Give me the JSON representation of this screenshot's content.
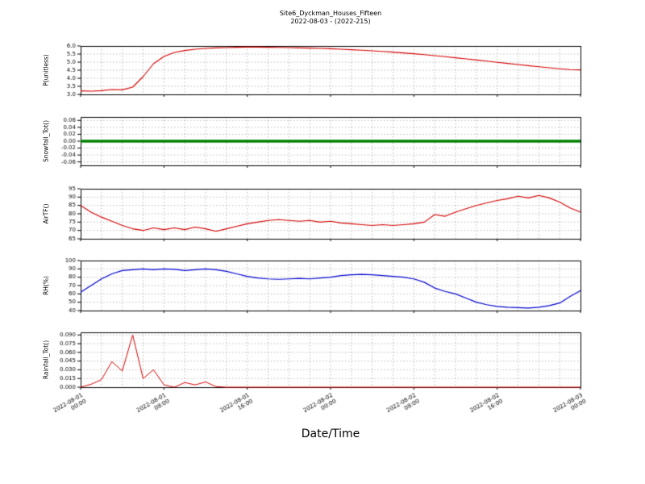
{
  "title": {
    "line1": "Site6_Dyckman_Houses_Fifteen",
    "line2": "2022-08-03 - (2022-215)"
  },
  "xlabel": "Date/Time",
  "chart_data": {
    "type": "line",
    "x_axis": {
      "label": "Date/Time",
      "start": "2022-08-01 00:00",
      "end": "2022-08-03 00:00",
      "total_hours": 48,
      "tick_hours": [
        0,
        8,
        16,
        24,
        32,
        40,
        48
      ],
      "tick_labels": [
        [
          "2022-08-01",
          "00:00"
        ],
        [
          "2022-08-01",
          "08:00"
        ],
        [
          "2022-08-01",
          "16:00"
        ],
        [
          "2022-08-02",
          "00:00"
        ],
        [
          "2022-08-02",
          "08:00"
        ],
        [
          "2022-08-02",
          "16:00"
        ],
        [
          "2022-08-03",
          "00:00"
        ]
      ],
      "grid_step_hours": 2
    },
    "subplots": [
      {
        "ylabel": "P(unitless)",
        "color": "#d40000",
        "line_width": 1.1,
        "ylim": [
          3.0,
          6.0
        ],
        "yticks": [
          3.0,
          3.5,
          4.0,
          4.5,
          5.0,
          5.5,
          6.0
        ],
        "ytick_labels": [
          "3.0",
          "3.5",
          "4.0",
          "4.5",
          "5.0",
          "5.5",
          "6.0"
        ],
        "values": [
          3.22,
          3.2,
          3.23,
          3.3,
          3.28,
          3.45,
          4.1,
          4.9,
          5.35,
          5.6,
          5.72,
          5.8,
          5.85,
          5.88,
          5.9,
          5.92,
          5.93,
          5.93,
          5.92,
          5.91,
          5.9,
          5.88,
          5.87,
          5.85,
          5.83,
          5.8,
          5.77,
          5.74,
          5.7,
          5.66,
          5.62,
          5.57,
          5.52,
          5.46,
          5.4,
          5.34,
          5.27,
          5.2,
          5.13,
          5.06,
          4.99,
          4.92,
          4.85,
          4.78,
          4.71,
          4.65,
          4.59,
          4.54,
          4.52
        ]
      },
      {
        "ylabel": "Snowfall_Tot()",
        "color": "#008000",
        "line_width": 3.5,
        "ylim": [
          -0.07,
          0.07
        ],
        "yticks": [
          -0.06,
          -0.04,
          -0.02,
          0.0,
          0.02,
          0.04,
          0.06
        ],
        "ytick_labels": [
          "-0.06",
          "-0.04",
          "-0.02",
          "0.00",
          "0.02",
          "0.04",
          "0.06"
        ],
        "values": [
          0,
          0,
          0,
          0,
          0,
          0,
          0,
          0,
          0,
          0,
          0,
          0,
          0,
          0,
          0,
          0,
          0,
          0,
          0,
          0,
          0,
          0,
          0,
          0,
          0,
          0,
          0,
          0,
          0,
          0,
          0,
          0,
          0,
          0,
          0,
          0,
          0,
          0,
          0,
          0,
          0,
          0,
          0,
          0,
          0,
          0,
          0,
          0,
          0
        ]
      },
      {
        "ylabel": "AirTF()",
        "color": "#d40000",
        "line_width": 1.1,
        "ylim": [
          65,
          95
        ],
        "yticks": [
          65,
          70,
          75,
          80,
          85,
          90,
          95
        ],
        "ytick_labels": [
          "65",
          "70",
          "75",
          "80",
          "85",
          "90",
          "95"
        ],
        "values": [
          85,
          81,
          78,
          75.5,
          73,
          71,
          70,
          71.5,
          70.5,
          71.5,
          70.5,
          72,
          71,
          69.5,
          71,
          72.5,
          74,
          75,
          76,
          76.5,
          76,
          75.5,
          76,
          75,
          75.5,
          74.5,
          74,
          73.5,
          73,
          73.5,
          73,
          73.5,
          74,
          75,
          79.5,
          78.5,
          81,
          83,
          85,
          86.5,
          88,
          89,
          90.5,
          89.5,
          91,
          89.5,
          87,
          83.5,
          81
        ]
      },
      {
        "ylabel": "RH(%)",
        "color": "#0000d0",
        "line_width": 1.2,
        "ylim": [
          40,
          100
        ],
        "yticks": [
          40,
          50,
          60,
          70,
          80,
          90,
          100
        ],
        "ytick_labels": [
          "40",
          "50",
          "60",
          "70",
          "80",
          "90",
          "100"
        ],
        "values": [
          62,
          70,
          78,
          84,
          88,
          89,
          90,
          89,
          90,
          89.5,
          88,
          89,
          90,
          89,
          87,
          84,
          81,
          79,
          78,
          77.5,
          78,
          78.5,
          78,
          79,
          80,
          82,
          83,
          83.5,
          83,
          82,
          81,
          80,
          78,
          74,
          67,
          63,
          60,
          55,
          50,
          47,
          45,
          44,
          43.5,
          43,
          44,
          46,
          49,
          57,
          64
        ]
      },
      {
        "ylabel": "Rainfall_Tot()",
        "color": "#d40000",
        "line_width": 1.0,
        "ylim": [
          0,
          0.0945
        ],
        "yticks": [
          0.0,
          0.015,
          0.03,
          0.045,
          0.06,
          0.075,
          0.09
        ],
        "ytick_labels": [
          "0.000",
          "0.015",
          "0.030",
          "0.045",
          "0.060",
          "0.075",
          "0.090"
        ],
        "values": [
          0,
          0.005,
          0.013,
          0.044,
          0.028,
          0.09,
          0.015,
          0.03,
          0.004,
          0,
          0.008,
          0.004,
          0.009,
          0.001,
          0,
          0,
          0,
          0,
          0,
          0,
          0,
          0,
          0,
          0,
          0,
          0,
          0,
          0,
          0,
          0,
          0,
          0,
          0,
          0,
          0,
          0,
          0,
          0,
          0,
          0,
          0,
          0,
          0,
          0,
          0,
          0,
          0,
          0,
          0
        ]
      }
    ],
    "grid": {
      "on": true,
      "style": "dashed",
      "color": "rgba(0,0,0,0.55)"
    }
  }
}
